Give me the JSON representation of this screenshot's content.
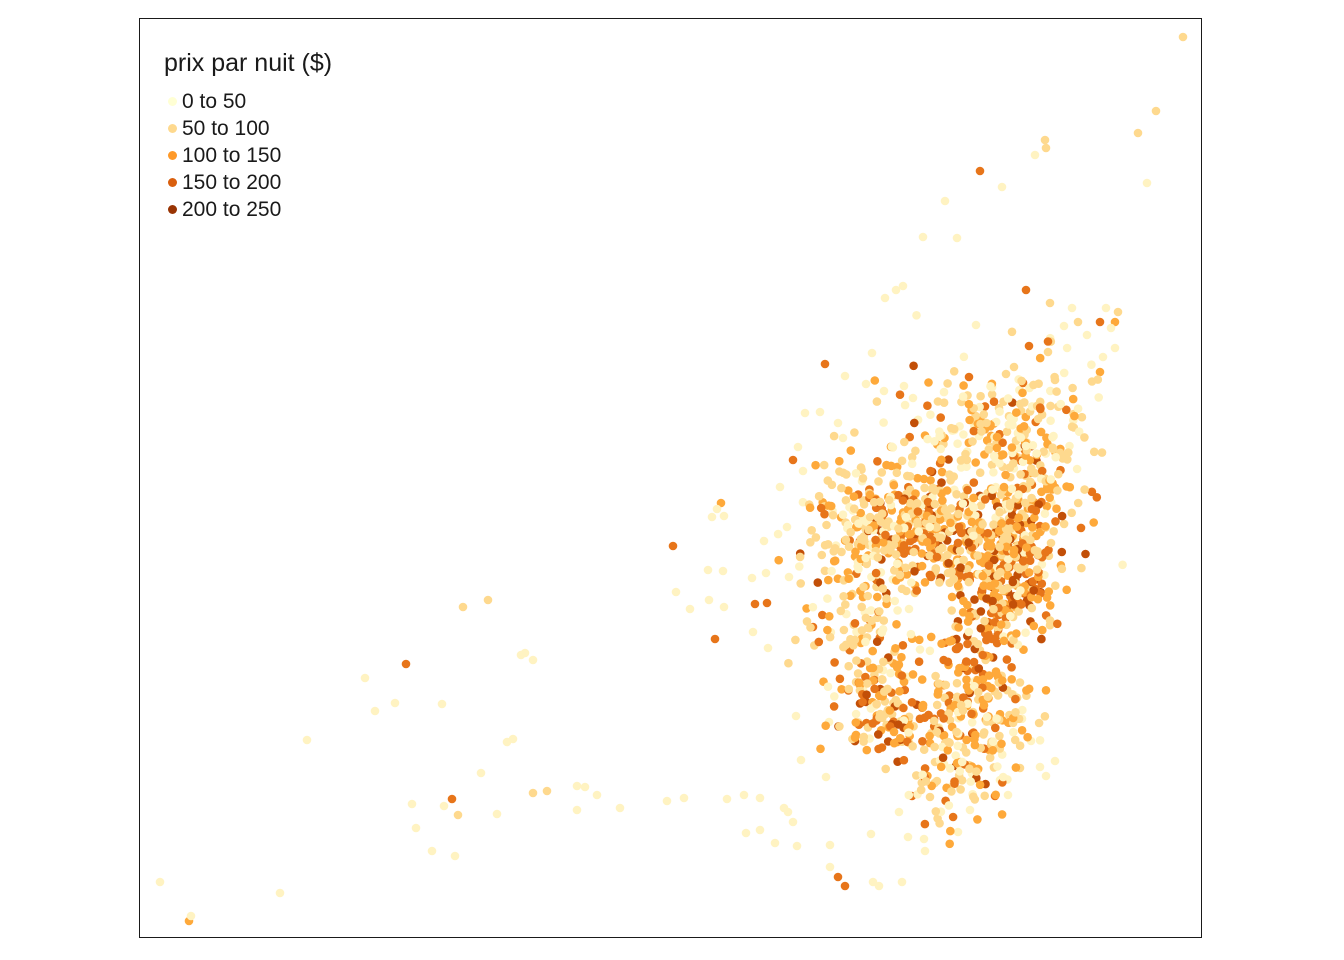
{
  "legend": {
    "title": "prix par nuit ($)",
    "classes": [
      {
        "label": "0 to 50",
        "color": "#ffffd4"
      },
      {
        "label": "50 to 100",
        "color": "#fed98e"
      },
      {
        "label": "100 to 150",
        "color": "#fe9929"
      },
      {
        "label": "150 to 200",
        "color": "#d95f0e"
      },
      {
        "label": "200 to 250",
        "color": "#993404"
      }
    ]
  },
  "map_layer": {
    "symbol": "dot",
    "palette": [
      "#fff3c2",
      "#fed98e",
      "#fea93a",
      "#e7751a",
      "#c24f08"
    ]
  }
}
